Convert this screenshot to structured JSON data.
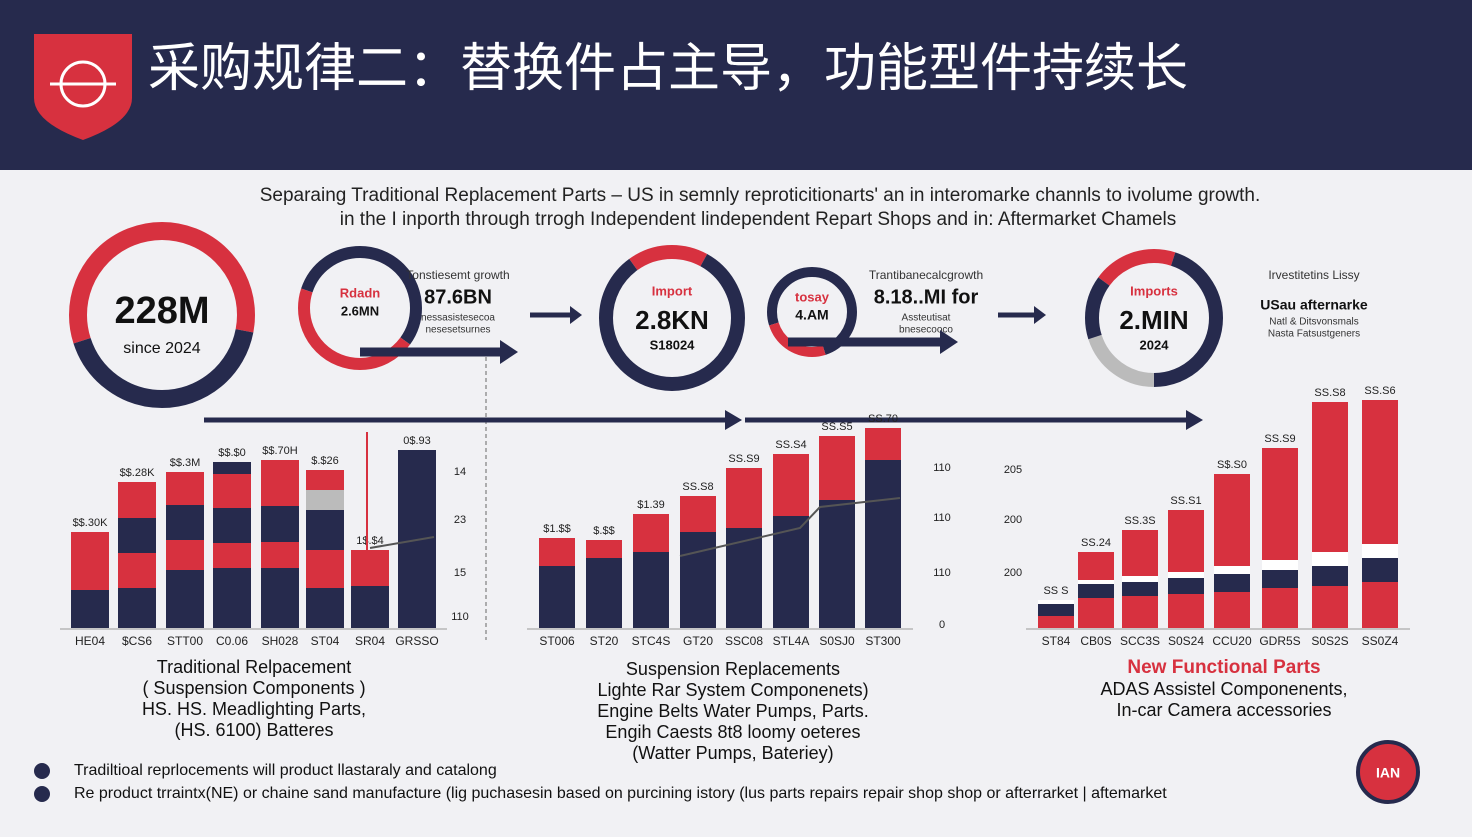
{
  "header": {
    "title": "采购规律二：替换件占主导，功能型件持续长"
  },
  "subtitle": [
    "Separaing Traditional Replacement Parts – US in semnly reproticitionarts' an in interomarke  channls to ivolume growth.",
    "in the I inporth through trrogh Independent lindependent Repart Shops and in: Aftermarket Chamels"
  ],
  "donuts": [
    {
      "big": "228M",
      "small": "since 2024"
    },
    {
      "top": "Rdadn",
      "big": "2.6MN",
      "callout_head": "Tonstiesemt growth",
      "callout_big": "87.6BN",
      "callout_note": [
        "nessasistesecoa",
        "nesesetsurnes"
      ]
    },
    {
      "top": "Import",
      "big": "2.8KN",
      "small": "S18024"
    },
    {
      "top": "tosay",
      "big": "4.AM",
      "callout_head": "Trantibanecalcgrowth",
      "callout_big": "8.18..MI for",
      "callout_note": [
        "Assteutisat",
        "bnesecooco"
      ]
    },
    {
      "top": "Imports",
      "big": "2.MIN",
      "small": "2024",
      "callout_head": "Irvestitetins Lissy",
      "callout_big": "USau afternarke",
      "callout_note": [
        "Natl & Ditsvonsmals",
        "Nasta Fatsustgeners"
      ]
    }
  ],
  "panels": [
    {
      "value_labels": [
        "$$.30K",
        "$$.28K",
        "$$.3M",
        "$$.$0",
        "$$.70H",
        "$.$26",
        "1$.$4",
        "0$.93"
      ],
      "x_labels": [
        "HE04",
        "$CS6",
        "STT00",
        "C0.06",
        "SH028",
        "ST04",
        "SR04",
        "GRSSO"
      ],
      "axis_labels": [
        "14",
        "23",
        "15",
        "110"
      ],
      "caption": [
        "Traditional Relpacement",
        "( Suspension Components )",
        "HS. HS. Meadlighting Parts,",
        "(HS. 6100) Batteres"
      ]
    },
    {
      "value_labels": [
        "$1.$$",
        "$.$$",
        "$1.39",
        "SS.S8",
        "SS.S9",
        "SS.S4",
        "SS.S5",
        "SS.70"
      ],
      "x_labels": [
        "ST006",
        "ST20",
        "STC4S",
        "GT20",
        "SSC08",
        "STL4A",
        "S0SJ0",
        "ST300"
      ],
      "axis_labels": [
        "110",
        "110",
        "110",
        "0"
      ],
      "caption": [
        "Suspension Replacements",
        "Lighte Rar System Componenets)",
        "Engine Belts Water Pumps, Parts.",
        "Engih Caests  8t8  loomy  oeteres",
        "(Watter Pumps, Bateriey)"
      ]
    },
    {
      "value_labels": [
        "SS S",
        "SS.24",
        "SS.3S",
        "SS.S1",
        "S$.S0",
        "SS.S9",
        "SS.S8",
        "SS.S6"
      ],
      "x_labels": [
        "ST84",
        "CB0S",
        "SCC3S",
        "S0S24",
        "CCU20",
        "GDR5S",
        "S0S2S",
        "SS0Z4"
      ],
      "axis_labels": [
        "205",
        "200",
        "200"
      ],
      "caption_title": "New Functional Parts",
      "caption": [
        "ADAS Assistel Componenents,",
        "In-car Camera accessories"
      ]
    }
  ],
  "footnotes": [
    "Tradiltioal  reprlocements will product llastaraly and catalong",
    "Re product trraintx(NE) or chaine sand manufacture (lig puchasesin based on purcining istory (lus parts repairs repair shop shop or afterrarket | aftemarket"
  ]
}
